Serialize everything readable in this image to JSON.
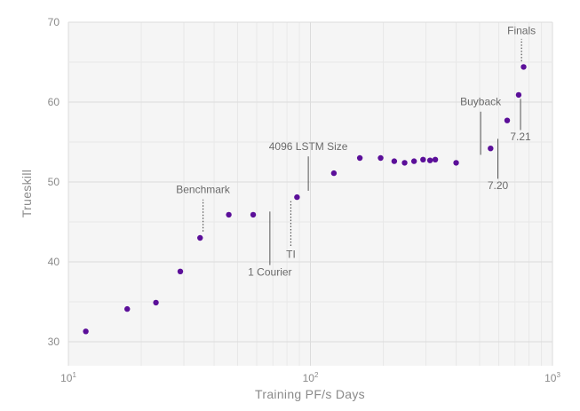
{
  "chart_data": {
    "type": "scatter",
    "xlabel": "Training PF/s Days",
    "ylabel": "Trueskill",
    "xscale": "log",
    "xlim": [
      10,
      1000
    ],
    "ylim": [
      27,
      70
    ],
    "grid": true,
    "x_ticks": [
      {
        "value": 10,
        "base": "10",
        "exp": "1"
      },
      {
        "value": 100,
        "base": "10",
        "exp": "2"
      },
      {
        "value": 1000,
        "base": "10",
        "exp": "3"
      }
    ],
    "y_ticks": [
      30,
      40,
      50,
      60,
      70
    ],
    "marker_color": "#5b0f99",
    "points": [
      {
        "x": 11.8,
        "y": 31.3
      },
      {
        "x": 17.5,
        "y": 34.1
      },
      {
        "x": 23,
        "y": 34.9
      },
      {
        "x": 29,
        "y": 38.8
      },
      {
        "x": 35,
        "y": 43.0
      },
      {
        "x": 46,
        "y": 45.9
      },
      {
        "x": 58,
        "y": 45.9
      },
      {
        "x": 88,
        "y": 48.1
      },
      {
        "x": 125,
        "y": 51.1
      },
      {
        "x": 160,
        "y": 53.0
      },
      {
        "x": 195,
        "y": 53.0
      },
      {
        "x": 222,
        "y": 52.6
      },
      {
        "x": 245,
        "y": 52.4
      },
      {
        "x": 268,
        "y": 52.6
      },
      {
        "x": 292,
        "y": 52.8
      },
      {
        "x": 312,
        "y": 52.7
      },
      {
        "x": 328,
        "y": 52.8
      },
      {
        "x": 400,
        "y": 52.4
      },
      {
        "x": 555,
        "y": 54.2
      },
      {
        "x": 650,
        "y": 57.7
      },
      {
        "x": 725,
        "y": 60.9
      },
      {
        "x": 760,
        "y": 64.4
      }
    ],
    "annotations": [
      {
        "label": "Benchmark",
        "line_x": 36,
        "line_y1": 43.8,
        "line_y2": 47.8,
        "style": "dotted",
        "text_x": 36,
        "text_y": 48.6,
        "anchor": "middle"
      },
      {
        "label": "1 Courier",
        "line_x": 68,
        "line_y1": 39.6,
        "line_y2": 46.3,
        "style": "solid",
        "text_x": 68,
        "text_y": 38.3,
        "anchor": "middle"
      },
      {
        "label": "TI",
        "line_x": 83,
        "line_y1": 42.0,
        "line_y2": 47.6,
        "style": "dotted",
        "text_x": 83,
        "text_y": 40.5,
        "anchor": "middle"
      },
      {
        "label": "4096 LSTM Size",
        "line_x": 98,
        "line_y1": 48.9,
        "line_y2": 53.2,
        "style": "solid",
        "text_x": 98,
        "text_y": 54.0,
        "anchor": "middle"
      },
      {
        "label": "Buyback",
        "line_x": 505,
        "line_y1": 53.4,
        "line_y2": 58.8,
        "style": "solid",
        "text_x": 505,
        "text_y": 59.6,
        "anchor": "middle"
      },
      {
        "label": "7.20",
        "line_x": 595,
        "line_y1": 50.4,
        "line_y2": 55.4,
        "style": "solid",
        "text_x": 595,
        "text_y": 49.1,
        "anchor": "middle"
      },
      {
        "label": "7.21",
        "line_x": 738,
        "line_y1": 56.5,
        "line_y2": 60.4,
        "style": "solid",
        "text_x": 738,
        "text_y": 55.2,
        "anchor": "middle"
      },
      {
        "label": "Finals",
        "line_x": 745,
        "line_y1": 65.1,
        "line_y2": 67.9,
        "style": "dotted",
        "text_x": 745,
        "text_y": 68.5,
        "anchor": "middle"
      }
    ]
  }
}
